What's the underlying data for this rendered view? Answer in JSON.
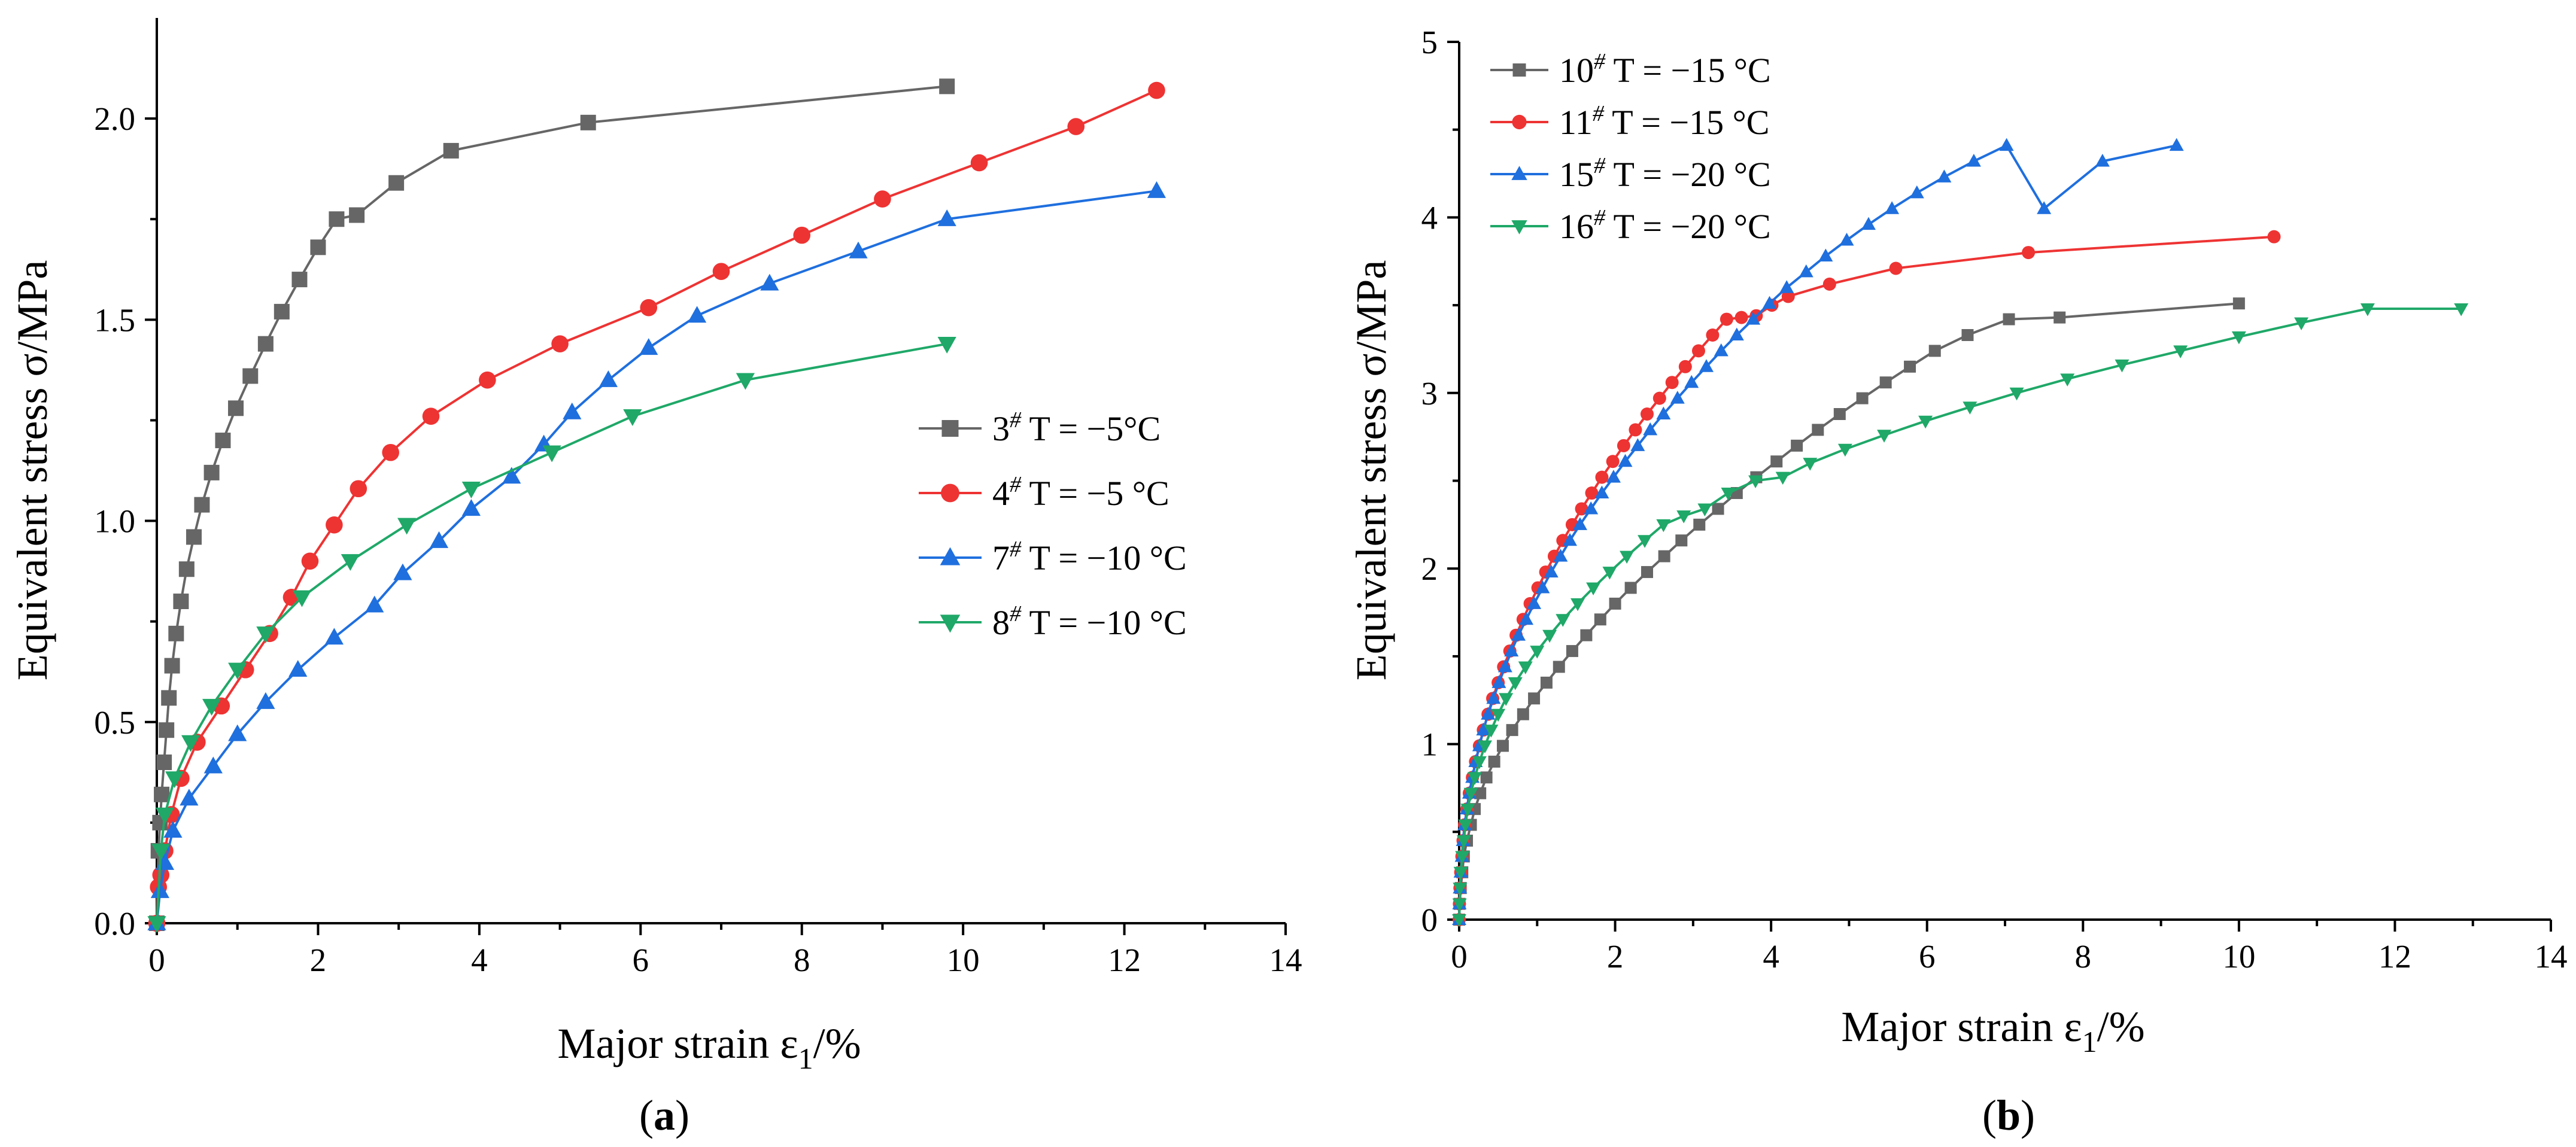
{
  "chart_data": [
    {
      "type": "line",
      "panel_label": "a",
      "xlabel": "Major strain ε1/%",
      "xlabel_parts": {
        "base": "Major strain ε",
        "sub": "1",
        "tail": "/%"
      },
      "ylabel": "Equivalent stress σ/MPa",
      "xlim": [
        0,
        14
      ],
      "ylim": [
        0,
        2.25
      ],
      "xticks": [
        0,
        2,
        4,
        6,
        8,
        10,
        12,
        14
      ],
      "xtick_labels": [
        "0",
        "2",
        "4",
        "6",
        "8",
        "10",
        "12",
        "14"
      ],
      "yticks": [
        0,
        0.5,
        1.0,
        1.5,
        2.0
      ],
      "ytick_labels": [
        "0.0",
        "0.5",
        "1.0",
        "1.5",
        "2.0"
      ],
      "legend_position": "center-right",
      "series": [
        {
          "name": "3# T = −5°C",
          "label_num": "3",
          "label_rest": "T = −5°C",
          "color": "#666666",
          "marker": "square",
          "x": [
            0,
            0.02,
            0.04,
            0.06,
            0.09,
            0.12,
            0.15,
            0.19,
            0.24,
            0.3,
            0.37,
            0.46,
            0.56,
            0.68,
            0.82,
            0.98,
            1.16,
            1.35,
            1.55,
            1.77,
            2.0,
            2.23,
            2.48,
            2.97,
            3.65,
            5.35,
            9.8
          ],
          "y": [
            0,
            0.18,
            0.25,
            0.32,
            0.4,
            0.48,
            0.56,
            0.64,
            0.72,
            0.8,
            0.88,
            0.96,
            1.04,
            1.12,
            1.2,
            1.28,
            1.36,
            1.44,
            1.52,
            1.6,
            1.68,
            1.75,
            1.76,
            1.84,
            1.92,
            1.99,
            2.08
          ]
        },
        {
          "name": "4# T = −5 °C",
          "label_num": "4",
          "label_rest": "T = −5 °C",
          "color": "#ee3333",
          "marker": "circle",
          "x": [
            0,
            0.02,
            0.05,
            0.1,
            0.18,
            0.3,
            0.5,
            0.8,
            1.1,
            1.4,
            1.67,
            1.9,
            2.2,
            2.5,
            2.9,
            3.4,
            4.1,
            5.0,
            6.1,
            7.0,
            8.0,
            9.0,
            10.2,
            11.4,
            12.4
          ],
          "y": [
            0,
            0.09,
            0.12,
            0.18,
            0.27,
            0.36,
            0.45,
            0.54,
            0.63,
            0.72,
            0.81,
            0.9,
            0.99,
            1.08,
            1.17,
            1.26,
            1.35,
            1.44,
            1.53,
            1.62,
            1.71,
            1.8,
            1.89,
            1.98,
            2.07
          ]
        },
        {
          "name": "7# T = −10 °C",
          "label_num": "7",
          "label_rest": "T = −10 °C",
          "color": "#1f6fde",
          "marker": "triangle-up",
          "x": [
            0,
            0.04,
            0.1,
            0.2,
            0.4,
            0.7,
            1.0,
            1.35,
            1.75,
            2.2,
            2.7,
            3.05,
            3.5,
            3.9,
            4.4,
            4.8,
            5.15,
            5.6,
            6.1,
            6.7,
            7.6,
            8.7,
            9.8,
            12.4
          ],
          "y": [
            0,
            0.08,
            0.15,
            0.23,
            0.31,
            0.39,
            0.47,
            0.55,
            0.63,
            0.71,
            0.79,
            0.87,
            0.95,
            1.03,
            1.11,
            1.19,
            1.27,
            1.35,
            1.43,
            1.51,
            1.59,
            1.67,
            1.75,
            1.82
          ]
        },
        {
          "name": "8# T = −10 °C",
          "label_num": "8",
          "label_rest": "T = −10 °C",
          "color": "#1fa868",
          "marker": "triangle-down",
          "x": [
            0,
            0.05,
            0.1,
            0.22,
            0.42,
            0.68,
            1.0,
            1.35,
            1.8,
            2.4,
            3.1,
            3.9,
            4.9,
            5.9,
            7.3,
            9.8
          ],
          "y": [
            0,
            0.18,
            0.27,
            0.36,
            0.45,
            0.54,
            0.63,
            0.72,
            0.81,
            0.9,
            0.99,
            1.08,
            1.17,
            1.26,
            1.35,
            1.44
          ]
        }
      ]
    },
    {
      "type": "line",
      "panel_label": "b",
      "xlabel": "Major strain ε1/%",
      "xlabel_parts": {
        "base": "Major strain ε",
        "sub": "1",
        "tail": "/%"
      },
      "ylabel": "Equivalent stress σ/MPa",
      "xlim": [
        0,
        14
      ],
      "ylim": [
        0,
        5
      ],
      "xticks": [
        0,
        2,
        4,
        6,
        8,
        10,
        12,
        14
      ],
      "xtick_labels": [
        "0",
        "2",
        "4",
        "6",
        "8",
        "10",
        "12",
        "14"
      ],
      "yticks": [
        0,
        1,
        2,
        3,
        4,
        5
      ],
      "ytick_labels": [
        "0",
        "1",
        "2",
        "3",
        "4",
        "5"
      ],
      "legend_position": "top-left",
      "series": [
        {
          "name": "10# T = −15 °C",
          "label_num": "10",
          "label_rest": "T = −15 °C",
          "color": "#666666",
          "marker": "square",
          "x": [
            0.0,
            0.005,
            0.02,
            0.04,
            0.06,
            0.1,
            0.15,
            0.2,
            0.27,
            0.35,
            0.45,
            0.56,
            0.68,
            0.82,
            0.96,
            1.12,
            1.28,
            1.45,
            1.63,
            1.81,
            2.0,
            2.2,
            2.41,
            2.63,
            2.85,
            3.08,
            3.32,
            3.56,
            3.81,
            4.07,
            4.33,
            4.6,
            4.88,
            5.17,
            5.47,
            5.78,
            6.1,
            6.52,
            7.05,
            7.7,
            10.0
          ],
          "y": [
            0.0,
            0.09,
            0.18,
            0.27,
            0.36,
            0.45,
            0.54,
            0.63,
            0.72,
            0.81,
            0.9,
            0.99,
            1.08,
            1.17,
            1.26,
            1.35,
            1.44,
            1.53,
            1.62,
            1.71,
            1.8,
            1.89,
            1.98,
            2.07,
            2.16,
            2.25,
            2.34,
            2.43,
            2.52,
            2.61,
            2.7,
            2.79,
            2.88,
            2.97,
            3.06,
            3.15,
            3.24,
            3.33,
            3.42,
            3.43,
            3.51
          ]
        },
        {
          "name": "11# T = −15 °C",
          "label_num": "11",
          "label_rest": "T = −15 °C",
          "color": "#ee3333",
          "marker": "circle",
          "x": [
            0.0,
            0.003,
            0.01,
            0.02,
            0.035,
            0.05,
            0.07,
            0.1,
            0.13,
            0.17,
            0.21,
            0.26,
            0.31,
            0.37,
            0.43,
            0.5,
            0.57,
            0.65,
            0.73,
            0.82,
            0.91,
            1.01,
            1.11,
            1.22,
            1.33,
            1.45,
            1.57,
            1.7,
            1.83,
            1.97,
            2.11,
            2.26,
            2.41,
            2.57,
            2.73,
            2.9,
            3.07,
            3.25,
            3.43,
            3.62,
            3.81,
            4.01,
            4.22,
            4.75,
            5.6,
            7.3,
            10.45
          ],
          "y": [
            0.0,
            0.09,
            0.18,
            0.27,
            0.36,
            0.45,
            0.54,
            0.63,
            0.72,
            0.81,
            0.9,
            0.99,
            1.08,
            1.17,
            1.26,
            1.35,
            1.44,
            1.53,
            1.62,
            1.71,
            1.8,
            1.89,
            1.98,
            2.07,
            2.16,
            2.25,
            2.34,
            2.43,
            2.52,
            2.61,
            2.7,
            2.79,
            2.88,
            2.97,
            3.06,
            3.15,
            3.24,
            3.33,
            3.42,
            3.43,
            3.44,
            3.5,
            3.55,
            3.62,
            3.71,
            3.8,
            3.89
          ]
        },
        {
          "name": "15# T = −20 °C",
          "label_num": "15",
          "label_rest": "T = −20 °C",
          "color": "#1f6fde",
          "marker": "triangle-up",
          "x": [
            0.0,
            0.003,
            0.01,
            0.02,
            0.035,
            0.05,
            0.07,
            0.1,
            0.13,
            0.17,
            0.21,
            0.26,
            0.31,
            0.37,
            0.44,
            0.51,
            0.59,
            0.67,
            0.76,
            0.86,
            0.96,
            1.07,
            1.18,
            1.3,
            1.42,
            1.55,
            1.69,
            1.83,
            1.98,
            2.13,
            2.29,
            2.45,
            2.62,
            2.8,
            2.98,
            3.17,
            3.36,
            3.56,
            3.77,
            3.98,
            4.2,
            4.45,
            4.7,
            4.97,
            5.25,
            5.55,
            5.87,
            6.22,
            6.6,
            7.02,
            7.5,
            8.25,
            9.2
          ],
          "y": [
            0.0,
            0.09,
            0.18,
            0.27,
            0.36,
            0.45,
            0.54,
            0.63,
            0.72,
            0.81,
            0.9,
            0.99,
            1.08,
            1.17,
            1.26,
            1.35,
            1.44,
            1.53,
            1.62,
            1.71,
            1.8,
            1.89,
            1.98,
            2.07,
            2.16,
            2.25,
            2.34,
            2.43,
            2.52,
            2.61,
            2.7,
            2.79,
            2.88,
            2.97,
            3.06,
            3.15,
            3.24,
            3.33,
            3.42,
            3.51,
            3.6,
            3.69,
            3.78,
            3.87,
            3.96,
            4.05,
            4.14,
            4.23,
            4.32,
            4.41,
            4.05,
            4.32,
            4.41
          ]
        },
        {
          "name": "16# T = −20 °C",
          "label_num": "16",
          "label_rest": "T = −20 °C",
          "color": "#1fa868",
          "marker": "triangle-down",
          "x": [
            0.0,
            0.005,
            0.01,
            0.02,
            0.04,
            0.06,
            0.08,
            0.11,
            0.15,
            0.2,
            0.26,
            0.33,
            0.41,
            0.5,
            0.6,
            0.72,
            0.85,
            1.0,
            1.16,
            1.33,
            1.52,
            1.72,
            1.93,
            2.15,
            2.38,
            2.62,
            2.88,
            3.15,
            3.45,
            3.8,
            4.15,
            4.5,
            4.95,
            5.45,
            5.98,
            6.55,
            7.15,
            7.8,
            8.5,
            9.25,
            10.0,
            10.8,
            11.65,
            12.85
          ],
          "y": [
            0.0,
            0.09,
            0.18,
            0.27,
            0.36,
            0.45,
            0.54,
            0.63,
            0.72,
            0.81,
            0.9,
            0.99,
            1.08,
            1.17,
            1.26,
            1.35,
            1.44,
            1.53,
            1.62,
            1.71,
            1.8,
            1.89,
            1.98,
            2.07,
            2.16,
            2.25,
            2.3,
            2.34,
            2.43,
            2.5,
            2.52,
            2.6,
            2.68,
            2.76,
            2.84,
            2.92,
            3.0,
            3.08,
            3.16,
            3.24,
            3.32,
            3.4,
            3.48,
            3.48
          ]
        }
      ]
    }
  ]
}
